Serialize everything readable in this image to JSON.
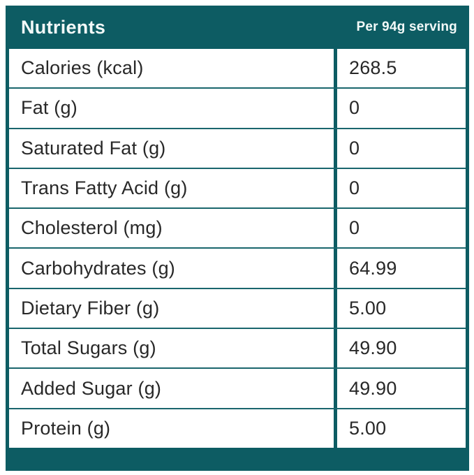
{
  "colors": {
    "accent_teal": "#0d5c63",
    "row_divider_teal": "#1a666d",
    "header_text": "#f2f9f8",
    "row_text": "#282828",
    "cell_background": "#ffffff"
  },
  "chart_data": {
    "type": "table",
    "title": "Nutrients",
    "columns": [
      "Nutrients",
      "Per 94g serving"
    ],
    "rows": [
      {
        "label": "Calories (kcal)",
        "value": "268.5"
      },
      {
        "label": "Fat (g)",
        "value": "0"
      },
      {
        "label": "Saturated Fat (g)",
        "value": "0"
      },
      {
        "label": "Trans Fatty Acid (g)",
        "value": "0"
      },
      {
        "label": "Cholesterol (mg)",
        "value": "0"
      },
      {
        "label": "Carbohydrates (g)",
        "value": "64.99"
      },
      {
        "label": "Dietary Fiber (g)",
        "value": "5.00"
      },
      {
        "label": "Total Sugars (g)",
        "value": "49.90"
      },
      {
        "label": "Added Sugar (g)",
        "value": "49.90"
      },
      {
        "label": "Protein (g)",
        "value": "5.00"
      }
    ]
  }
}
